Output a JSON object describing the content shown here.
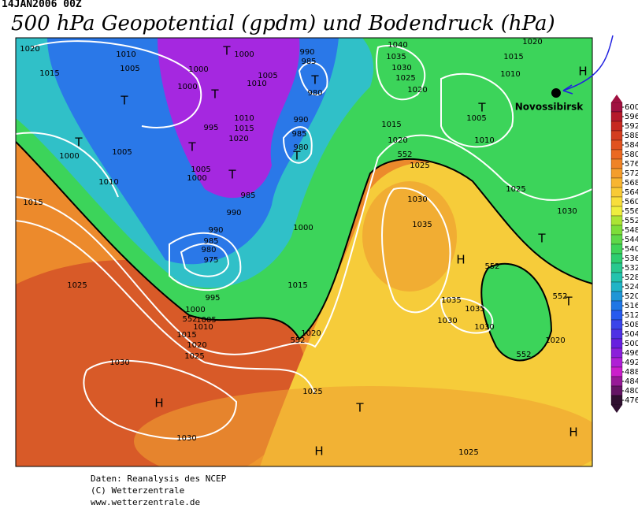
{
  "header": {
    "date": "14JAN2006 00Z",
    "title": "500 hPa Geopotential (gpdm) und Bodendruck (hPa)"
  },
  "map": {
    "city": "Novossibirsk",
    "labels": [
      "1020",
      "1015",
      "1010",
      "1005",
      "1000",
      "1000",
      "T",
      "T",
      "1000",
      "1005",
      "1010",
      "1015",
      "T",
      "T",
      "1000",
      "1005",
      "1010",
      "995",
      "T",
      "1010",
      "1015",
      "1020",
      "1005",
      "1000",
      "T",
      "985",
      "990",
      "T",
      "990",
      "985",
      "980",
      "990",
      "985",
      "980",
      "T",
      "1040",
      "1035",
      "1030",
      "1025",
      "1020",
      "1020",
      "1015",
      "1010",
      "H",
      "T",
      "1005",
      "1015",
      "1020",
      "1010",
      "552",
      "1025",
      "1025",
      "1030",
      "1035",
      "1030",
      "T",
      "H",
      "552",
      "1000",
      "990",
      "985",
      "980",
      "975",
      "995",
      "1000",
      "1005",
      "552",
      "1010",
      "1015",
      "1020",
      "1025",
      "1015",
      "1020",
      "552",
      "1025",
      "1035",
      "1035",
      "1030",
      "1030",
      "1020",
      "552",
      "T",
      "552",
      "1030",
      "H",
      "1025",
      "T",
      "1030",
      "H",
      "1025",
      "H"
    ]
  },
  "colorbar": {
    "ticks": [
      600,
      596,
      592,
      588,
      584,
      580,
      576,
      572,
      568,
      564,
      560,
      556,
      552,
      548,
      544,
      540,
      536,
      532,
      528,
      524,
      520,
      516,
      512,
      508,
      504,
      500,
      496,
      492,
      488,
      484,
      480,
      476
    ]
  },
  "footer": {
    "line1": "Daten: Reanalysis des NCEP",
    "line2": "(C) Wetterzentrale",
    "line3": "www.wetterzentrale.de"
  }
}
